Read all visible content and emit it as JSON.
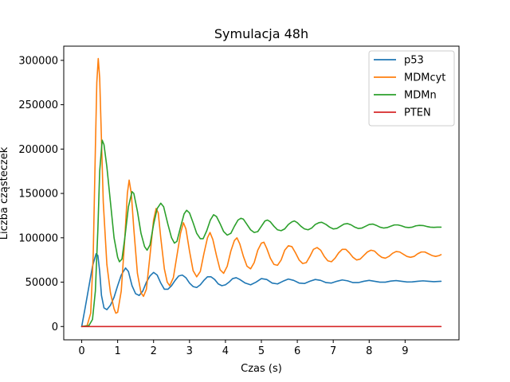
{
  "chart_data": {
    "type": "line",
    "title": "Symulacja 48h",
    "xlabel": "Czas (s)",
    "ylabel": "Liczba cząsteczek",
    "xlim": [
      -0.5,
      10.5
    ],
    "ylim": [
      -15000,
      316000
    ],
    "xticks": [
      0,
      1,
      2,
      3,
      4,
      5,
      6,
      7,
      8,
      9
    ],
    "yticks": [
      0,
      50000,
      100000,
      150000,
      200000,
      250000,
      300000
    ],
    "grid": false,
    "legend": "top-right",
    "series": [
      {
        "name": "p53",
        "color": "#1f77b4",
        "points": [
          [
            0,
            0
          ],
          [
            0.1,
            22000
          ],
          [
            0.2,
            45000
          ],
          [
            0.3,
            68000
          ],
          [
            0.4,
            82000
          ],
          [
            0.45,
            80000
          ],
          [
            0.5,
            62000
          ],
          [
            0.55,
            35000
          ],
          [
            0.62,
            21000
          ],
          [
            0.7,
            19000
          ],
          [
            0.8,
            24000
          ],
          [
            0.9,
            33000
          ],
          [
            1.0,
            46000
          ],
          [
            1.1,
            58000
          ],
          [
            1.22,
            66000
          ],
          [
            1.3,
            62000
          ],
          [
            1.4,
            46000
          ],
          [
            1.5,
            37000
          ],
          [
            1.6,
            35000
          ],
          [
            1.7,
            40000
          ],
          [
            1.8,
            50000
          ],
          [
            1.9,
            57000
          ],
          [
            2.0,
            61000
          ],
          [
            2.1,
            58000
          ],
          [
            2.2,
            49000
          ],
          [
            2.3,
            42000
          ],
          [
            2.4,
            42000
          ],
          [
            2.5,
            46000
          ],
          [
            2.6,
            52000
          ],
          [
            2.7,
            57000
          ],
          [
            2.8,
            58000
          ],
          [
            2.9,
            55000
          ],
          [
            3.0,
            49000
          ],
          [
            3.1,
            45000
          ],
          [
            3.2,
            44000
          ],
          [
            3.3,
            47000
          ],
          [
            3.4,
            52000
          ],
          [
            3.5,
            56000
          ],
          [
            3.6,
            56000
          ],
          [
            3.7,
            53000
          ],
          [
            3.8,
            48000
          ],
          [
            3.9,
            46000
          ],
          [
            4.0,
            47000
          ],
          [
            4.1,
            50000
          ],
          [
            4.2,
            54000
          ],
          [
            4.3,
            55000
          ],
          [
            4.4,
            53000
          ],
          [
            4.55,
            49000
          ],
          [
            4.7,
            47000
          ],
          [
            4.85,
            50000
          ],
          [
            5.0,
            54000
          ],
          [
            5.15,
            53000
          ],
          [
            5.3,
            49000
          ],
          [
            5.45,
            48000
          ],
          [
            5.6,
            51000
          ],
          [
            5.75,
            53500
          ],
          [
            5.9,
            52000
          ],
          [
            6.05,
            49000
          ],
          [
            6.2,
            48500
          ],
          [
            6.35,
            51000
          ],
          [
            6.5,
            53000
          ],
          [
            6.65,
            52000
          ],
          [
            6.8,
            49500
          ],
          [
            6.95,
            49000
          ],
          [
            7.1,
            51000
          ],
          [
            7.25,
            52500
          ],
          [
            7.4,
            51500
          ],
          [
            7.55,
            49500
          ],
          [
            7.7,
            49500
          ],
          [
            7.85,
            51000
          ],
          [
            8.0,
            52000
          ],
          [
            8.15,
            51000
          ],
          [
            8.3,
            50000
          ],
          [
            8.45,
            50000
          ],
          [
            8.6,
            51200
          ],
          [
            8.75,
            51800
          ],
          [
            8.9,
            51000
          ],
          [
            9.05,
            50200
          ],
          [
            9.2,
            50300
          ],
          [
            9.35,
            51000
          ],
          [
            9.5,
            51500
          ],
          [
            9.65,
            51000
          ],
          [
            9.8,
            50500
          ],
          [
            10.0,
            51000
          ]
        ]
      },
      {
        "name": "MDMcyt",
        "color": "#ff7f0e",
        "points": [
          [
            0,
            0
          ],
          [
            0.15,
            1000
          ],
          [
            0.25,
            15000
          ],
          [
            0.32,
            80000
          ],
          [
            0.38,
            200000
          ],
          [
            0.42,
            275000
          ],
          [
            0.46,
            302000
          ],
          [
            0.5,
            280000
          ],
          [
            0.55,
            210000
          ],
          [
            0.6,
            140000
          ],
          [
            0.7,
            70000
          ],
          [
            0.8,
            38000
          ],
          [
            0.9,
            20000
          ],
          [
            0.95,
            15000
          ],
          [
            1.0,
            16000
          ],
          [
            1.1,
            40000
          ],
          [
            1.2,
            100000
          ],
          [
            1.27,
            150000
          ],
          [
            1.32,
            165000
          ],
          [
            1.38,
            150000
          ],
          [
            1.45,
            110000
          ],
          [
            1.55,
            60000
          ],
          [
            1.65,
            38000
          ],
          [
            1.72,
            34000
          ],
          [
            1.8,
            42000
          ],
          [
            1.9,
            80000
          ],
          [
            2.0,
            120000
          ],
          [
            2.07,
            133000
          ],
          [
            2.13,
            128000
          ],
          [
            2.2,
            100000
          ],
          [
            2.3,
            65000
          ],
          [
            2.38,
            50000
          ],
          [
            2.45,
            46000
          ],
          [
            2.55,
            55000
          ],
          [
            2.65,
            80000
          ],
          [
            2.75,
            105000
          ],
          [
            2.83,
            117000
          ],
          [
            2.9,
            110000
          ],
          [
            3.0,
            85000
          ],
          [
            3.1,
            63000
          ],
          [
            3.2,
            56000
          ],
          [
            3.3,
            62000
          ],
          [
            3.4,
            82000
          ],
          [
            3.5,
            100000
          ],
          [
            3.57,
            106000
          ],
          [
            3.65,
            98000
          ],
          [
            3.75,
            80000
          ],
          [
            3.85,
            64000
          ],
          [
            3.95,
            60000
          ],
          [
            4.05,
            68000
          ],
          [
            4.15,
            85000
          ],
          [
            4.25,
            97000
          ],
          [
            4.32,
            100000
          ],
          [
            4.4,
            93000
          ],
          [
            4.5,
            79000
          ],
          [
            4.6,
            68000
          ],
          [
            4.7,
            65000
          ],
          [
            4.8,
            72000
          ],
          [
            4.9,
            86000
          ],
          [
            5.0,
            94000
          ],
          [
            5.07,
            95000
          ],
          [
            5.15,
            88000
          ],
          [
            5.25,
            77000
          ],
          [
            5.35,
            70000
          ],
          [
            5.45,
            69000
          ],
          [
            5.55,
            75000
          ],
          [
            5.65,
            86000
          ],
          [
            5.75,
            91000
          ],
          [
            5.85,
            90000
          ],
          [
            5.95,
            83000
          ],
          [
            6.05,
            75000
          ],
          [
            6.15,
            71000
          ],
          [
            6.25,
            72000
          ],
          [
            6.35,
            79000
          ],
          [
            6.45,
            87000
          ],
          [
            6.55,
            89000
          ],
          [
            6.65,
            86000
          ],
          [
            6.75,
            79000
          ],
          [
            6.85,
            74000
          ],
          [
            6.95,
            73000
          ],
          [
            7.05,
            77000
          ],
          [
            7.15,
            83000
          ],
          [
            7.25,
            87000
          ],
          [
            7.35,
            87000
          ],
          [
            7.45,
            83000
          ],
          [
            7.55,
            78000
          ],
          [
            7.65,
            75000
          ],
          [
            7.75,
            76000
          ],
          [
            7.85,
            80000
          ],
          [
            7.95,
            84000
          ],
          [
            8.05,
            86000
          ],
          [
            8.15,
            85000
          ],
          [
            8.25,
            81000
          ],
          [
            8.35,
            78000
          ],
          [
            8.45,
            77000
          ],
          [
            8.55,
            79000
          ],
          [
            8.65,
            82500
          ],
          [
            8.75,
            84500
          ],
          [
            8.85,
            84000
          ],
          [
            8.95,
            81500
          ],
          [
            9.05,
            79000
          ],
          [
            9.15,
            78000
          ],
          [
            9.25,
            79000
          ],
          [
            9.35,
            82000
          ],
          [
            9.45,
            84000
          ],
          [
            9.55,
            84000
          ],
          [
            9.65,
            82000
          ],
          [
            9.75,
            80000
          ],
          [
            9.85,
            79000
          ],
          [
            9.95,
            80000
          ],
          [
            10.0,
            81000
          ]
        ]
      },
      {
        "name": "MDMn",
        "color": "#2ca02c",
        "points": [
          [
            0,
            0
          ],
          [
            0.2,
            1000
          ],
          [
            0.3,
            8000
          ],
          [
            0.38,
            40000
          ],
          [
            0.45,
            110000
          ],
          [
            0.5,
            175000
          ],
          [
            0.57,
            210000
          ],
          [
            0.62,
            205000
          ],
          [
            0.7,
            180000
          ],
          [
            0.8,
            140000
          ],
          [
            0.9,
            100000
          ],
          [
            1.0,
            78000
          ],
          [
            1.05,
            73000
          ],
          [
            1.12,
            76000
          ],
          [
            1.2,
            100000
          ],
          [
            1.3,
            135000
          ],
          [
            1.4,
            152000
          ],
          [
            1.45,
            150000
          ],
          [
            1.55,
            130000
          ],
          [
            1.65,
            105000
          ],
          [
            1.75,
            90000
          ],
          [
            1.82,
            86000
          ],
          [
            1.9,
            92000
          ],
          [
            2.0,
            115000
          ],
          [
            2.1,
            133000
          ],
          [
            2.2,
            139000
          ],
          [
            2.28,
            135000
          ],
          [
            2.4,
            115000
          ],
          [
            2.5,
            100000
          ],
          [
            2.58,
            94000
          ],
          [
            2.65,
            96000
          ],
          [
            2.75,
            112000
          ],
          [
            2.85,
            127000
          ],
          [
            2.92,
            131000
          ],
          [
            3.0,
            128000
          ],
          [
            3.1,
            117000
          ],
          [
            3.2,
            105000
          ],
          [
            3.3,
            99000
          ],
          [
            3.38,
            99000
          ],
          [
            3.48,
            108000
          ],
          [
            3.58,
            120000
          ],
          [
            3.67,
            126000
          ],
          [
            3.75,
            124000
          ],
          [
            3.85,
            116000
          ],
          [
            3.95,
            107000
          ],
          [
            4.05,
            103000
          ],
          [
            4.15,
            105000
          ],
          [
            4.25,
            113000
          ],
          [
            4.35,
            120000
          ],
          [
            4.43,
            122000
          ],
          [
            4.5,
            121000
          ],
          [
            4.6,
            115000
          ],
          [
            4.7,
            109000
          ],
          [
            4.8,
            106000
          ],
          [
            4.9,
            107000
          ],
          [
            5.0,
            113000
          ],
          [
            5.1,
            119000
          ],
          [
            5.17,
            120000
          ],
          [
            5.25,
            118000
          ],
          [
            5.35,
            113000
          ],
          [
            5.45,
            109000
          ],
          [
            5.55,
            108000
          ],
          [
            5.65,
            110000
          ],
          [
            5.75,
            115000
          ],
          [
            5.85,
            118000
          ],
          [
            5.92,
            119000
          ],
          [
            6.0,
            117000
          ],
          [
            6.1,
            113000
          ],
          [
            6.2,
            110000
          ],
          [
            6.3,
            109000
          ],
          [
            6.4,
            111000
          ],
          [
            6.5,
            115000
          ],
          [
            6.6,
            117000
          ],
          [
            6.68,
            117500
          ],
          [
            6.8,
            115000
          ],
          [
            6.9,
            112000
          ],
          [
            7.0,
            110000
          ],
          [
            7.1,
            110500
          ],
          [
            7.2,
            113000
          ],
          [
            7.3,
            115500
          ],
          [
            7.4,
            116000
          ],
          [
            7.5,
            114500
          ],
          [
            7.6,
            112000
          ],
          [
            7.7,
            110500
          ],
          [
            7.8,
            111000
          ],
          [
            7.9,
            113000
          ],
          [
            8.0,
            115000
          ],
          [
            8.1,
            115500
          ],
          [
            8.2,
            114000
          ],
          [
            8.3,
            112000
          ],
          [
            8.4,
            111000
          ],
          [
            8.5,
            111500
          ],
          [
            8.6,
            113000
          ],
          [
            8.7,
            114500
          ],
          [
            8.8,
            114500
          ],
          [
            8.9,
            113500
          ],
          [
            9.0,
            112000
          ],
          [
            9.1,
            111500
          ],
          [
            9.2,
            112000
          ],
          [
            9.3,
            113500
          ],
          [
            9.4,
            114000
          ],
          [
            9.5,
            113800
          ],
          [
            9.6,
            112800
          ],
          [
            9.7,
            112000
          ],
          [
            9.8,
            111800
          ],
          [
            9.9,
            112000
          ],
          [
            10.0,
            112000
          ]
        ]
      },
      {
        "name": "PTEN",
        "color": "#d62728",
        "points": [
          [
            0,
            0
          ],
          [
            10.0,
            0
          ]
        ]
      }
    ]
  }
}
